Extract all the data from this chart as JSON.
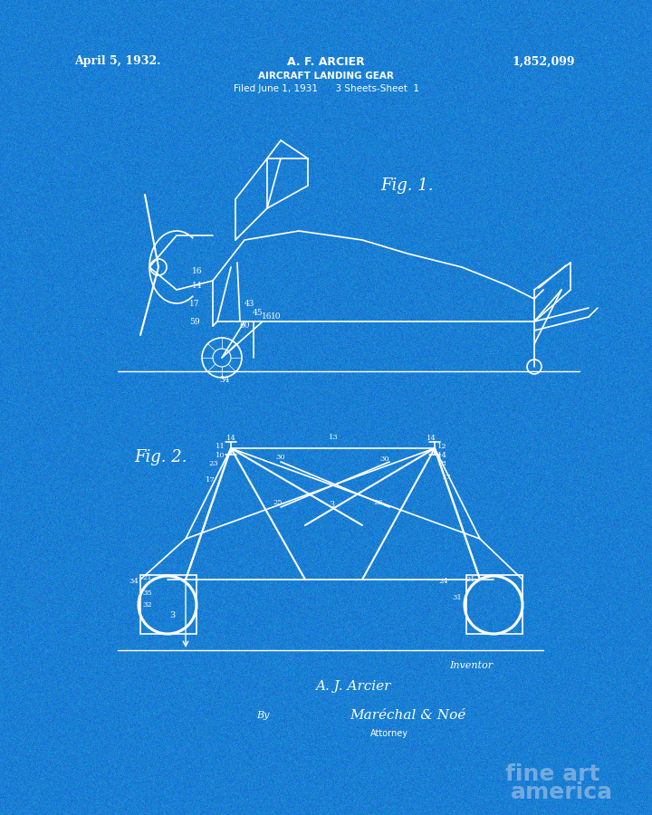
{
  "bg_color": "#1a7fd4",
  "line_color": "white",
  "title_date": "April 5, 1932.",
  "title_inventor": "A. F. ARCIER",
  "title_patent": "1,852,099",
  "title_subject": "AIRCRAFT LANDING GEAR",
  "title_filed": "Filed June 1, 1931      3 Sheets-Sheet  1",
  "fig1_label": "Fig. 1.",
  "fig2_label": "Fig. 2.",
  "inventor_sig": "A. J. Arcier",
  "attorney_by": "By",
  "attorney_sig": "Maréchal & Noé",
  "attorney_label": "Attorney",
  "inventor_label": "Inventor",
  "watermark_line1": "fine art",
  "watermark_line2": "america",
  "watermark_color": "#b0c8e8"
}
